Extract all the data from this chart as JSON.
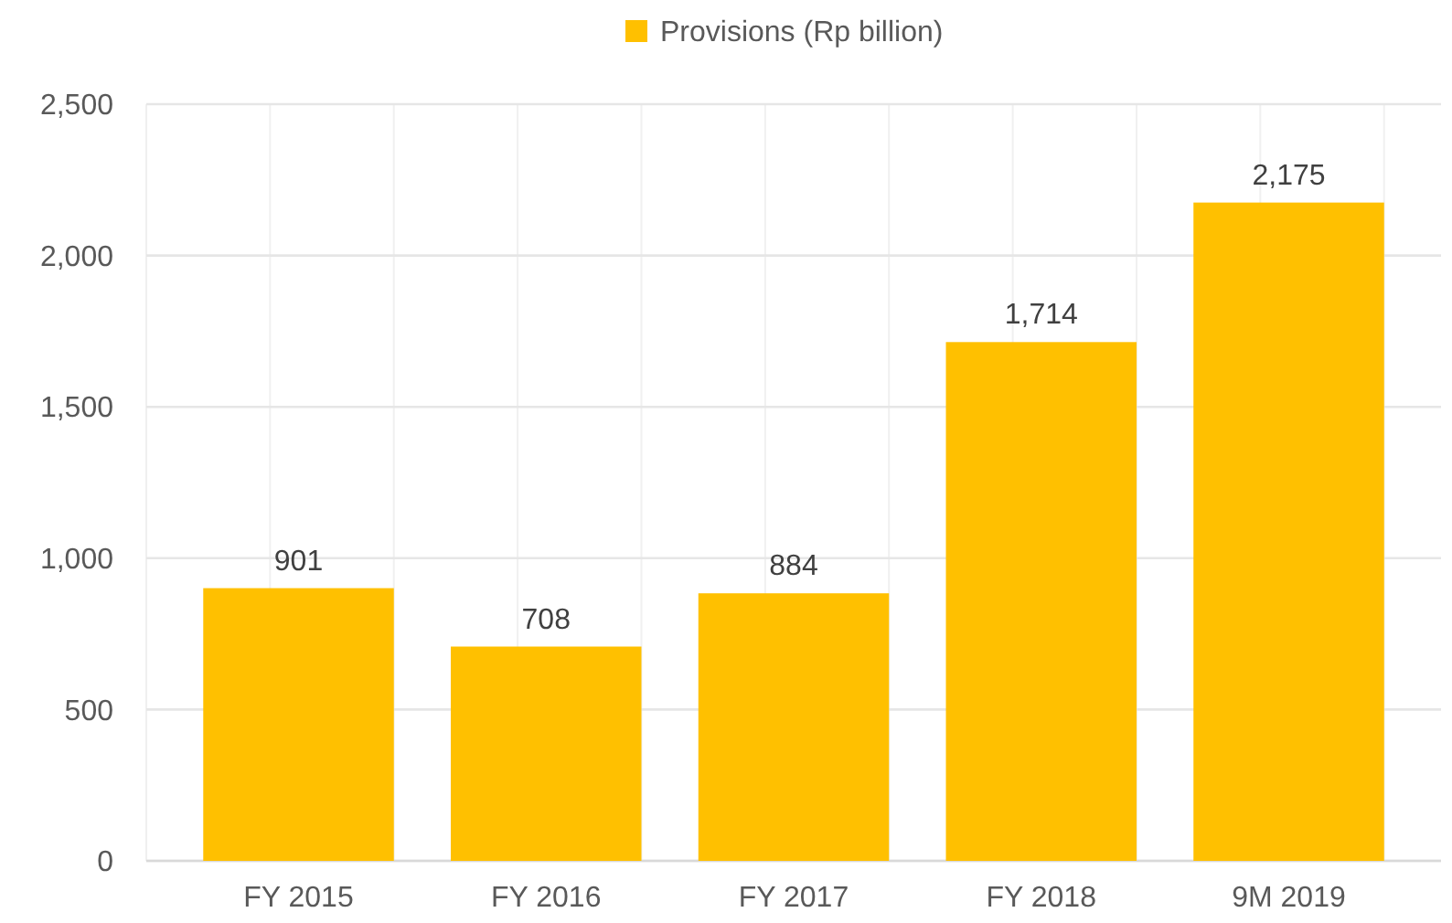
{
  "chart_data": {
    "type": "bar",
    "categories": [
      "FY 2015",
      "FY 2016",
      "FY 2017",
      "FY 2018",
      "9M 2019"
    ],
    "series": [
      {
        "name": "Provisions (Rp billion)",
        "color": "#ffc000",
        "values": [
          901,
          708,
          884,
          1714,
          2175
        ],
        "value_labels": [
          "901",
          "708",
          "884",
          "1,714",
          "2,175"
        ]
      }
    ],
    "ylim": [
      0,
      2500
    ],
    "yticks": [
      0,
      500,
      {
        "value": 1000,
        "label": "1,000"
      },
      {
        "value": 1500,
        "label": "1,500"
      },
      {
        "value": 2000,
        "label": "2,000"
      },
      {
        "value": 2500,
        "label": "2,500"
      }
    ],
    "grid": true,
    "legend": "top"
  }
}
